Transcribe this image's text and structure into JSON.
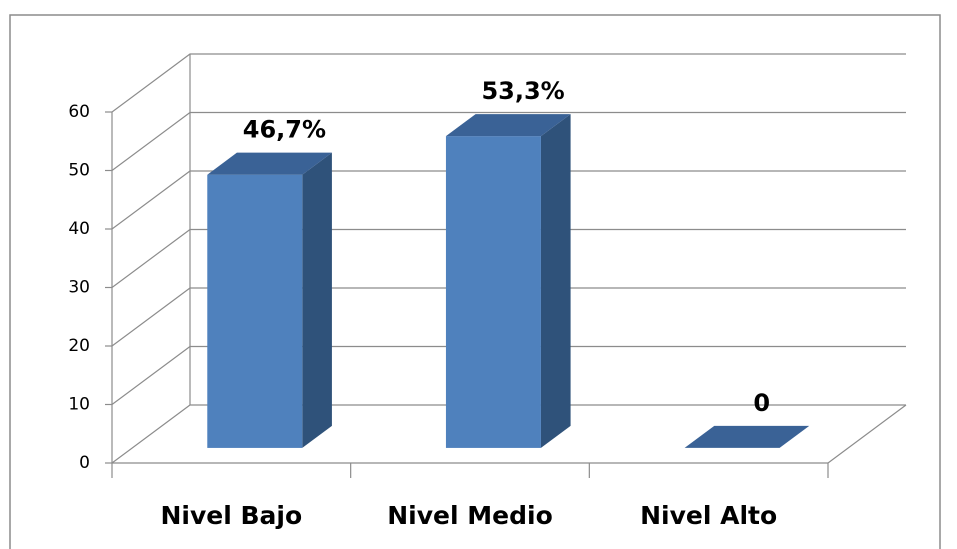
{
  "chart_data": {
    "type": "bar3d",
    "categories": [
      "Nivel Bajo",
      "Nivel Medio",
      "Nivel Alto"
    ],
    "values": [
      46.7,
      53.3,
      0
    ],
    "value_labels": [
      "46,7%",
      "53,3%",
      "0"
    ],
    "color": "#4f81bd",
    "ylim": [
      0,
      60
    ],
    "yticks": [
      0,
      10,
      20,
      30,
      40,
      50,
      60
    ],
    "grid": true
  }
}
